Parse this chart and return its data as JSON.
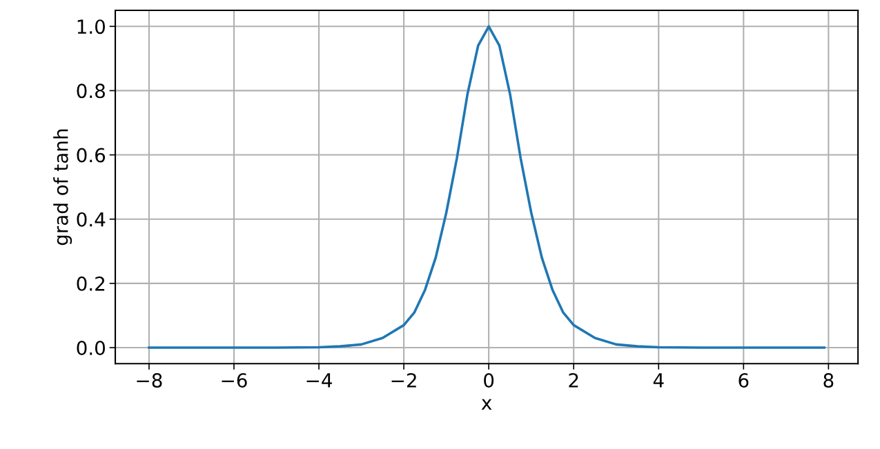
{
  "chart_data": {
    "type": "line",
    "xlabel": "x",
    "ylabel": "grad of tanh",
    "series": [
      {
        "color": "#1f77b4",
        "x": [
          -8,
          -6,
          -5,
          -4,
          -3.5,
          -3,
          -2.5,
          -2,
          -1.75,
          -1.5,
          -1.25,
          -1,
          -0.75,
          -0.5,
          -0.25,
          0,
          0.25,
          0.5,
          0.75,
          1,
          1.25,
          1.5,
          1.75,
          2,
          2.5,
          3,
          3.5,
          4,
          5,
          6,
          7.9
        ],
        "values": [
          0.0,
          0.0,
          0.0,
          0.001,
          0.004,
          0.01,
          0.03,
          0.07,
          0.11,
          0.18,
          0.28,
          0.42,
          0.59,
          0.79,
          0.94,
          1.0,
          0.94,
          0.79,
          0.59,
          0.42,
          0.28,
          0.18,
          0.11,
          0.07,
          0.03,
          0.01,
          0.004,
          0.001,
          0.0,
          0.0,
          0.0
        ]
      }
    ],
    "xlim": [
      -8.795,
      8.695
    ],
    "ylim": [
      -0.05,
      1.05
    ],
    "xticks": [
      {
        "value": -8,
        "label": "−8"
      },
      {
        "value": -6,
        "label": "−6"
      },
      {
        "value": -4,
        "label": "−4"
      },
      {
        "value": -2,
        "label": "−2"
      },
      0,
      2,
      4,
      6,
      8
    ],
    "yticks": [
      {
        "value": 0,
        "label": "0.0"
      },
      {
        "value": 0.2,
        "label": "0.2"
      },
      {
        "value": 0.4,
        "label": "0.4"
      },
      {
        "value": 0.6,
        "label": "0.6"
      },
      {
        "value": 0.8,
        "label": "0.8"
      },
      {
        "value": 1.0,
        "label": "1.0"
      }
    ],
    "grid": true,
    "line_style": "solid",
    "marker": "none"
  }
}
